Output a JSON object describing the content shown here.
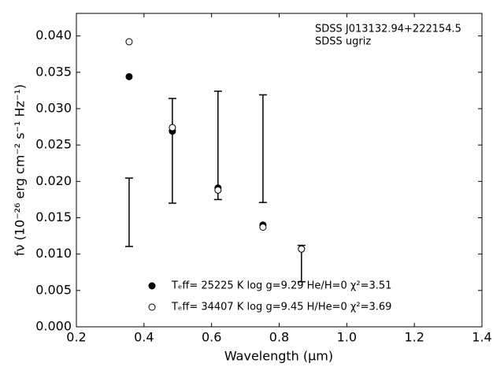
{
  "chart_data": {
    "type": "scatter",
    "xlabel": "Wavelength (μm)",
    "ylabel": "fν (10⁻²⁶ erg cm⁻² s⁻¹ Hz⁻¹)",
    "annotations": [
      "SDSS J013132.94+222154.5",
      "SDSS ugriz"
    ],
    "x": [
      0.356,
      0.484,
      0.619,
      0.752,
      0.866
    ],
    "observed": {
      "color": "#000000",
      "values": [
        0.01575,
        0.0242,
        0.02495,
        0.0245,
        0.0087
      ],
      "errors": [
        0.0047,
        0.0072,
        0.00745,
        0.0074,
        0.0025
      ]
    },
    "series": [
      {
        "name": "Tₑff= 25225 K  log g=9.29  He/H=0  χ²=3.51",
        "color": "#000000",
        "marker": "filled",
        "values": [
          0.0344,
          0.0269,
          0.0191,
          0.014,
          0.0107
        ]
      },
      {
        "name": "Tₑff= 34407 K  log g=9.45  H/He=0  χ²=3.69",
        "color": "#000000",
        "marker": "open",
        "values": [
          0.0392,
          0.0274,
          0.0188,
          0.0137,
          0.0107
        ]
      }
    ],
    "xlim": [
      0.2,
      1.4
    ],
    "ylim": [
      0,
      0.0431
    ],
    "xticks": [
      0.2,
      0.4,
      0.6,
      0.8,
      {
        "value": 1,
        "label": "1.0"
      },
      1.2,
      1.4
    ],
    "yticks": [
      {
        "value": 0,
        "label": "0.000"
      },
      0.005,
      {
        "value": 0.01,
        "label": "0.010"
      },
      0.015,
      {
        "value": 0.02,
        "label": "0.020"
      },
      0.025,
      {
        "value": 0.03,
        "label": "0.030"
      },
      0.035,
      {
        "value": 0.04,
        "label": "0.040"
      }
    ]
  }
}
